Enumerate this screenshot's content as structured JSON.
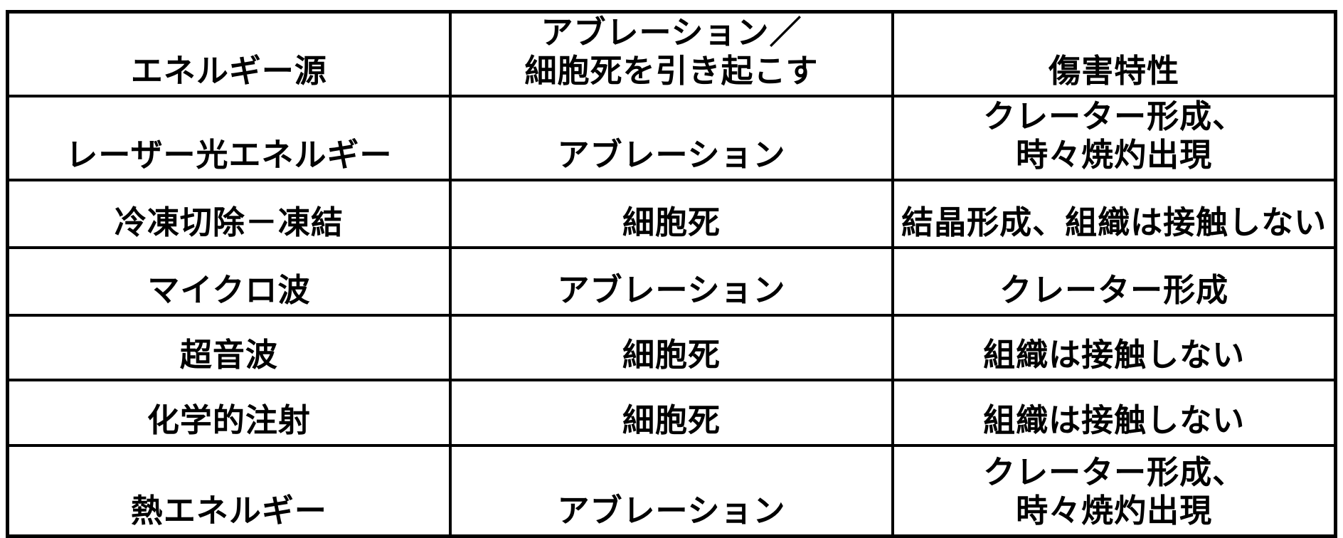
{
  "table": {
    "title": "energy-source-ablation-table",
    "colors": {
      "border": "#000000",
      "background": "#ffffff",
      "text": "#000000"
    },
    "headers": [
      "エネルギー源",
      "アブレーション／\n細胞死を引き起こす",
      "傷害特性"
    ],
    "rows": [
      [
        "レーザー光エネルギー",
        "アブレーション",
        "クレーター形成、\n時々焼灼出現"
      ],
      [
        "冷凍切除－凍結",
        "細胞死",
        "結晶形成、組織は接触しない"
      ],
      [
        "マイクロ波",
        "アブレーション",
        "クレーター形成"
      ],
      [
        "超音波",
        "細胞死",
        "組織は接触しない"
      ],
      [
        "化学的注射",
        "細胞死",
        "組織は接触しない"
      ],
      [
        "熱エネルギー",
        "アブレーション",
        "クレーター形成、\n時々焼灼出現"
      ]
    ]
  },
  "chart_data": {
    "type": "table",
    "columns": [
      "エネルギー源",
      "アブレーション／細胞死を引き起こす",
      "傷害特性"
    ],
    "rows": [
      [
        "レーザー光エネルギー",
        "アブレーション",
        "クレーター形成、時々焼灼出現"
      ],
      [
        "冷凍切除－凍結",
        "細胞死",
        "結晶形成、組織は接触しない"
      ],
      [
        "マイクロ波",
        "アブレーション",
        "クレーター形成"
      ],
      [
        "超音波",
        "細胞死",
        "組織は接触しない"
      ],
      [
        "化学的注射",
        "細胞死",
        "組織は接触しない"
      ],
      [
        "熱エネルギー",
        "アブレーション",
        "クレーター形成、時々焼灼出現"
      ]
    ]
  }
}
